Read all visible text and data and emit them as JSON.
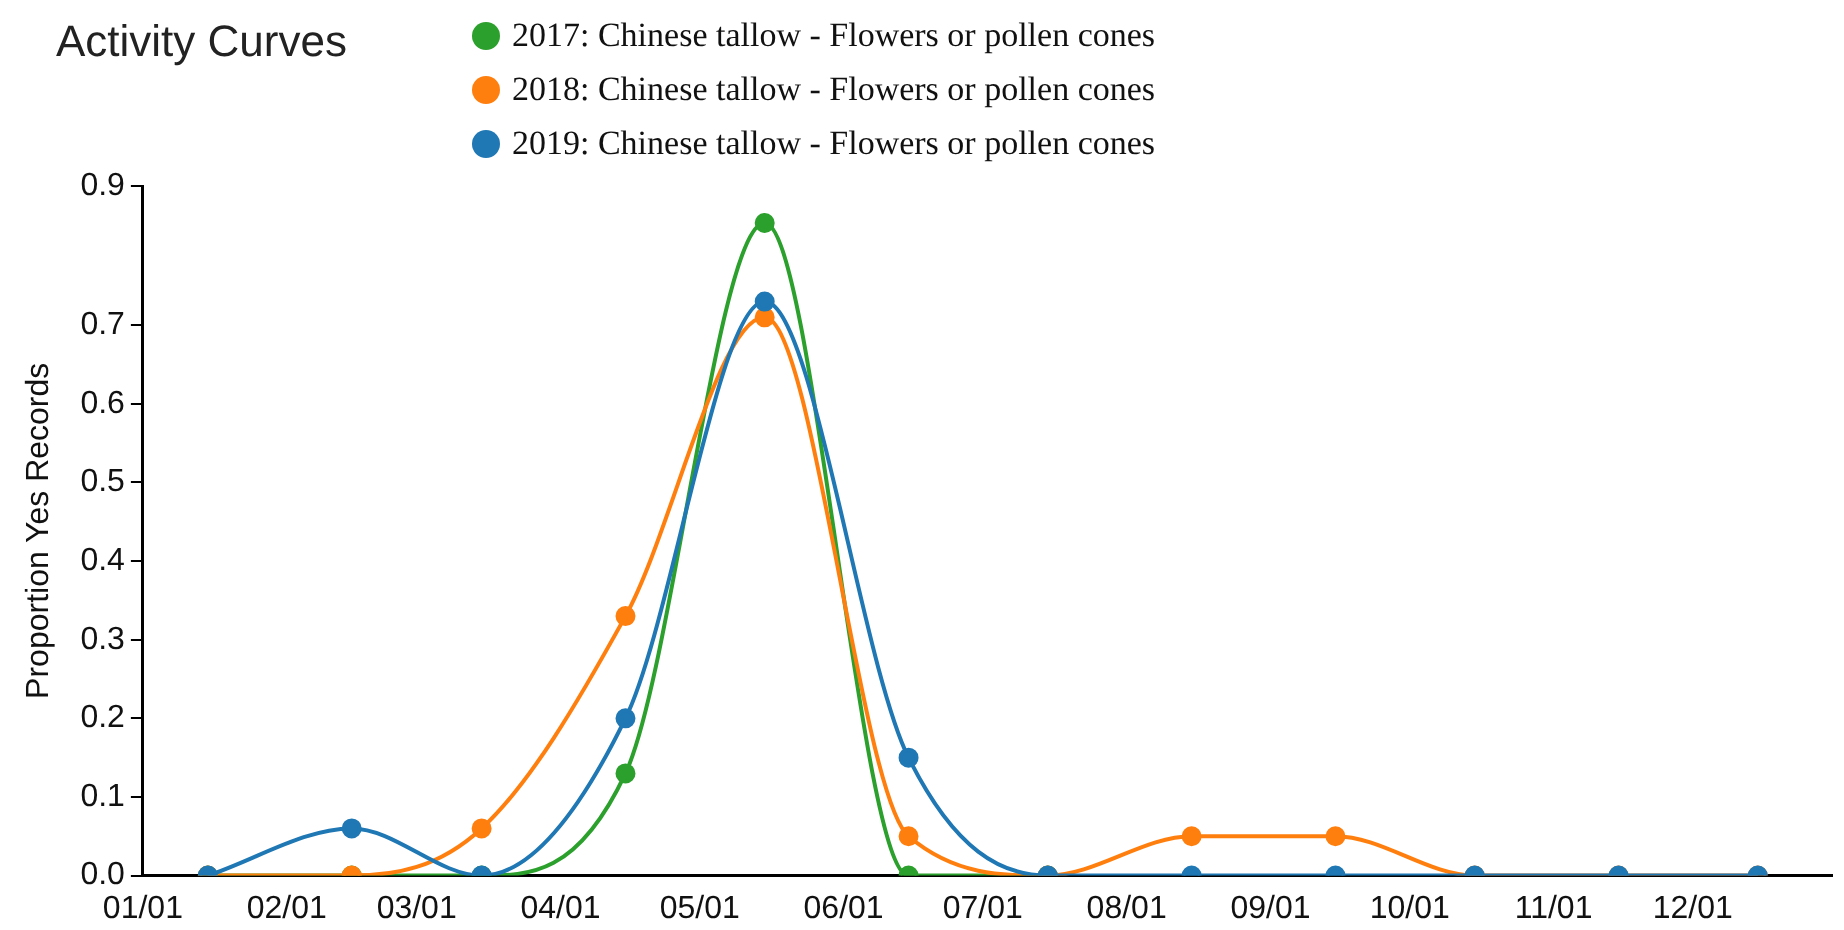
{
  "chart_data": {
    "type": "line",
    "title": "Activity Curves",
    "ylabel": "Proportion Yes Records",
    "x": [
      "--01-15",
      "--02-15",
      "--03-15",
      "--04-15",
      "--05-15",
      "--06-15",
      "--07-15",
      "--08-15",
      "--09-15",
      "--10-15",
      "--11-15",
      "--12-15"
    ],
    "series": [
      {
        "name": "2017: Chinese tallow - Flowers or pollen cones",
        "color": "#2ca02c",
        "values": [
          0,
          0,
          0,
          0.13,
          0.83,
          0,
          0,
          null,
          null,
          null,
          null,
          null
        ]
      },
      {
        "name": "2018: Chinese tallow - Flowers or pollen cones",
        "color": "#ff7f0e",
        "values": [
          0,
          0,
          0.06,
          0.33,
          0.71,
          0.05,
          0,
          0.05,
          0.05,
          0,
          0,
          0
        ]
      },
      {
        "name": "2019: Chinese tallow - Flowers or pollen cones",
        "color": "#1f77b4",
        "values": [
          0,
          0.06,
          0,
          0.2,
          0.73,
          0.15,
          0,
          0,
          0,
          0,
          0,
          0
        ]
      }
    ],
    "xlim": [
      "--01-01",
      "--12-31"
    ],
    "xticks": [
      {
        "value": "--01-01",
        "label": "01/01"
      },
      {
        "value": "--02-01",
        "label": "02/01"
      },
      {
        "value": "--03-01",
        "label": "03/01"
      },
      {
        "value": "--04-01",
        "label": "04/01"
      },
      {
        "value": "--05-01",
        "label": "05/01"
      },
      {
        "value": "--06-01",
        "label": "06/01"
      },
      {
        "value": "--07-01",
        "label": "07/01"
      },
      {
        "value": "--08-01",
        "label": "08/01"
      },
      {
        "value": "--09-01",
        "label": "09/01"
      },
      {
        "value": "--10-01",
        "label": "10/01"
      },
      {
        "value": "--11-01",
        "label": "11/01"
      },
      {
        "value": "--12-01",
        "label": "12/01"
      }
    ],
    "ylim": [
      0,
      0.877
    ],
    "yticks": [
      {
        "value": 0,
        "label": "0.0"
      },
      0.1,
      0.2,
      0.3,
      0.4,
      0.5,
      0.6,
      0.7,
      {
        "value": 0.877,
        "label": "0.9"
      }
    ],
    "grid": false,
    "legend": "top",
    "marker": "circle",
    "line_style": "solid"
  }
}
